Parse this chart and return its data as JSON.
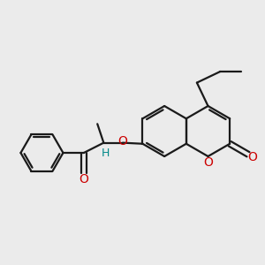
{
  "bg_color": "#ebebeb",
  "bond_color": "#1a1a1a",
  "oxygen_color": "#cc0000",
  "h_color": "#008888",
  "line_width": 1.6,
  "figsize": [
    3.0,
    3.0
  ],
  "dpi": 100,
  "xlim": [
    0,
    10
  ],
  "ylim": [
    0,
    10
  ]
}
